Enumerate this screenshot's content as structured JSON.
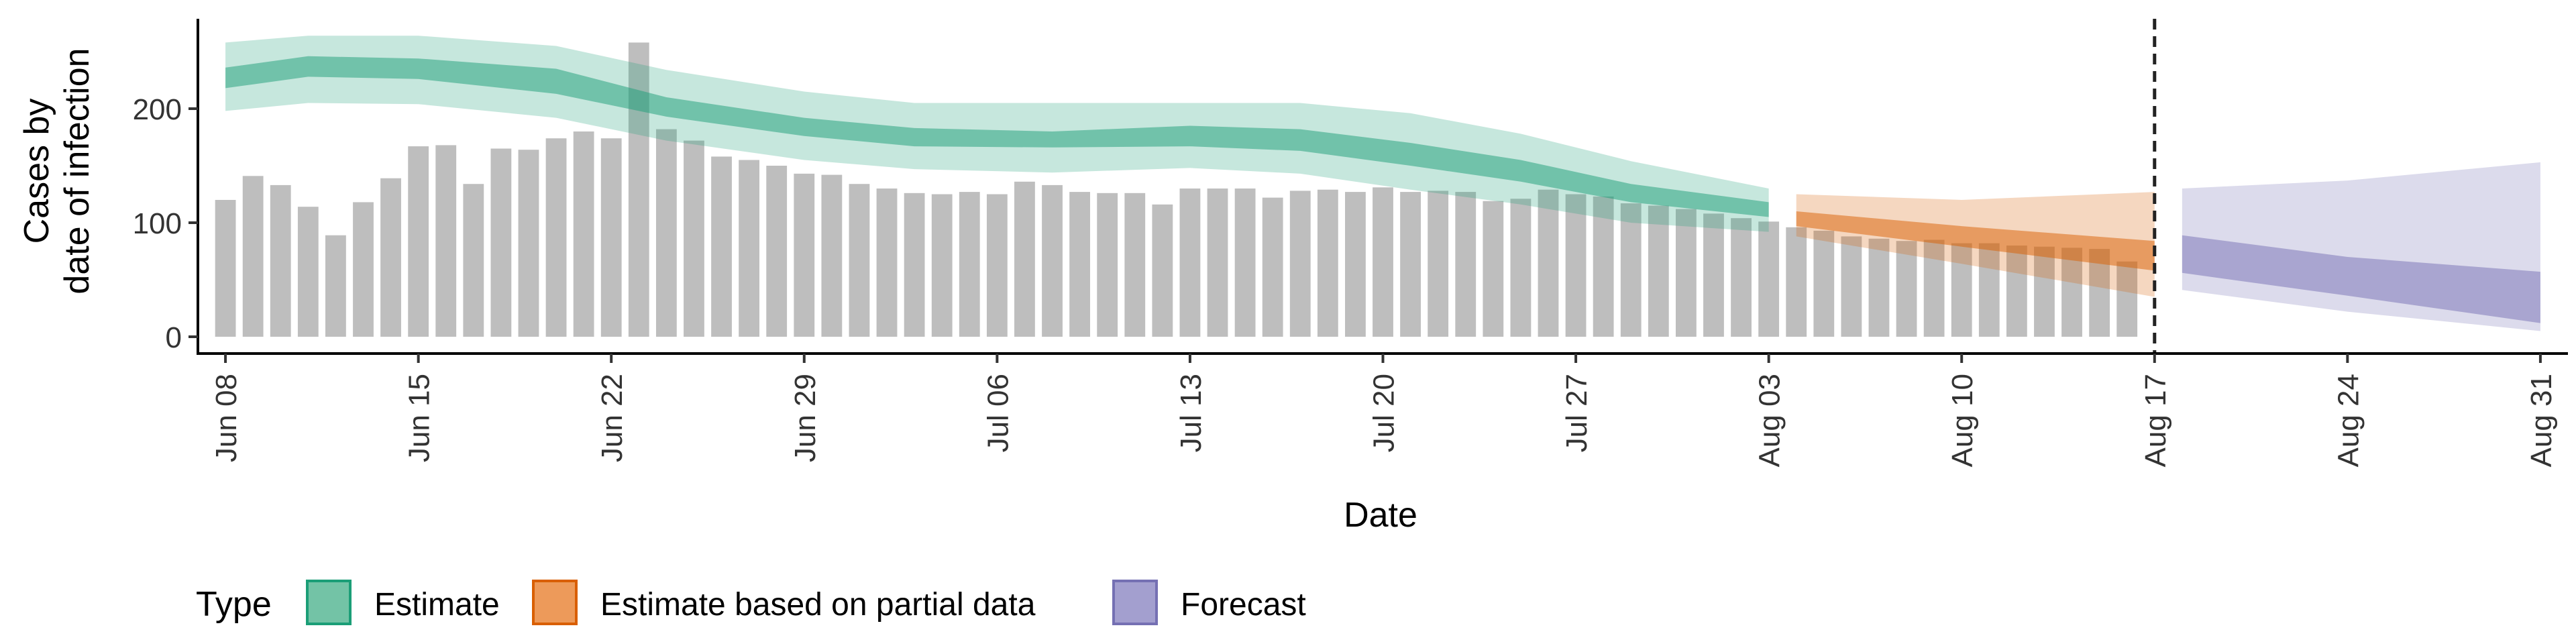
{
  "chart_data": {
    "type": "bar",
    "title": "",
    "xlabel": "Date",
    "ylabel_lines": [
      "Cases by",
      "date of infection"
    ],
    "ylim": [
      0,
      270
    ],
    "yticks": [
      0,
      100,
      200
    ],
    "xlim": [
      "2020-06-07",
      "2020-09-01"
    ],
    "xticks": [
      "2020-06-08",
      "2020-06-15",
      "2020-06-22",
      "2020-06-29",
      "2020-07-06",
      "2020-07-13",
      "2020-07-20",
      "2020-07-27",
      "2020-08-03",
      "2020-08-10",
      "2020-08-17",
      "2020-08-24",
      "2020-08-31"
    ],
    "xtick_labels": [
      "Jun 08",
      "Jun 15",
      "Jun 22",
      "Jun 29",
      "Jul 06",
      "Jul 13",
      "Jul 20",
      "Jul 27",
      "Aug 03",
      "Aug 10",
      "Aug 17",
      "Aug 24",
      "Aug 31"
    ],
    "vline_date": "2020-08-17",
    "bar_color": "#bebebe",
    "bars": {
      "start_date": "2020-06-08",
      "values": [
        120,
        141,
        133,
        114,
        89,
        118,
        139,
        167,
        168,
        134,
        165,
        164,
        174,
        180,
        174,
        258,
        182,
        172,
        158,
        155,
        150,
        143,
        142,
        134,
        130,
        126,
        125,
        127,
        125,
        136,
        133,
        127,
        126,
        126,
        116,
        130,
        130,
        130,
        122,
        128,
        129,
        127,
        131,
        127,
        128,
        127,
        119,
        121,
        129,
        125,
        123,
        117,
        115,
        112,
        108,
        104,
        101,
        96,
        93,
        88,
        86,
        84,
        85,
        82,
        82,
        80,
        79,
        78,
        77,
        66
      ]
    },
    "legend": {
      "title": "Type",
      "position": "bottom",
      "items": [
        {
          "label": "Estimate",
          "fill": "#73c3a6",
          "stroke": "#1b9e77"
        },
        {
          "label": "Estimate based on partial data",
          "fill": "#ed9a5a",
          "stroke": "#d95f02"
        },
        {
          "label": "Forecast",
          "fill": "#a39fcf",
          "stroke": "#7570b3"
        }
      ]
    },
    "series": [
      {
        "name": "Estimate",
        "color": "#1b9e77",
        "dates": [
          "2020-06-08",
          "2020-06-11",
          "2020-06-15",
          "2020-06-20",
          "2020-06-24",
          "2020-06-29",
          "2020-07-03",
          "2020-07-08",
          "2020-07-13",
          "2020-07-17",
          "2020-07-21",
          "2020-07-25",
          "2020-07-29",
          "2020-08-03"
        ],
        "lower90": [
          198,
          205,
          204,
          192,
          172,
          155,
          147,
          144,
          148,
          143,
          129,
          116,
          100,
          92
        ],
        "lower50": [
          218,
          228,
          226,
          213,
          193,
          176,
          167,
          166,
          167,
          163,
          150,
          136,
          118,
          105
        ],
        "upper50": [
          236,
          246,
          244,
          235,
          210,
          192,
          183,
          180,
          185,
          182,
          170,
          155,
          134,
          118
        ],
        "upper90": [
          258,
          264,
          264,
          255,
          234,
          215,
          205,
          205,
          205,
          205,
          196,
          178,
          154,
          130
        ]
      },
      {
        "name": "Estimate based on partial data",
        "color": "#d95f02",
        "dates": [
          "2020-08-04",
          "2020-08-10",
          "2020-08-17"
        ],
        "lower90": [
          88,
          64,
          35
        ],
        "lower50": [
          97,
          79,
          58
        ],
        "upper50": [
          110,
          97,
          84
        ],
        "upper90": [
          125,
          120,
          127
        ]
      },
      {
        "name": "Forecast",
        "color": "#7570b3",
        "dates": [
          "2020-08-18",
          "2020-08-24",
          "2020-08-31"
        ],
        "lower90": [
          41,
          22,
          5
        ],
        "lower50": [
          56,
          36,
          12
        ],
        "upper50": [
          89,
          70,
          57
        ],
        "upper90": [
          130,
          137,
          153
        ]
      }
    ]
  }
}
